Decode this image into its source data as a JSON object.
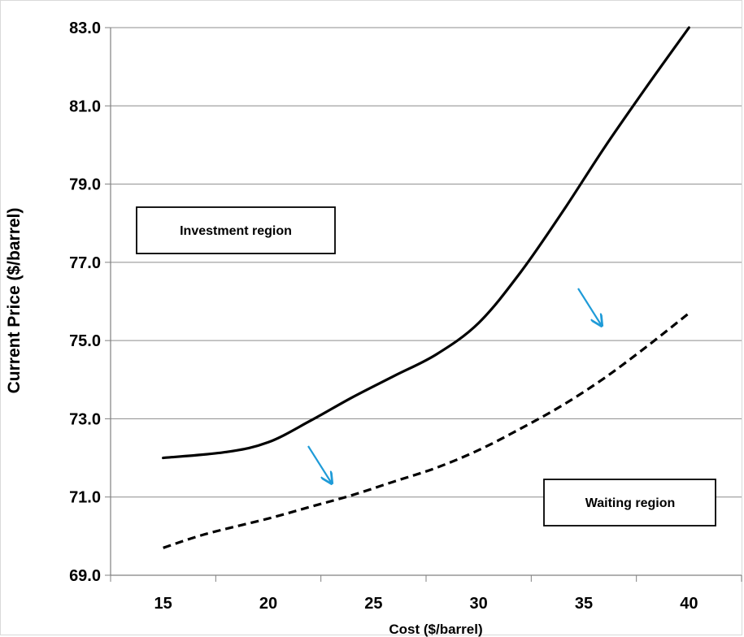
{
  "chart_data": {
    "type": "line",
    "title": "",
    "xlabel": "Cost ($/barrel)",
    "ylabel": "Current Price ($/barrel)",
    "xlim": [
      12.5,
      42.5
    ],
    "ylim": [
      69.0,
      83.0
    ],
    "x_ticks": [
      "15",
      "20",
      "25",
      "30",
      "35",
      "40"
    ],
    "y_ticks": [
      "69.0",
      "71.0",
      "73.0",
      "75.0",
      "77.0",
      "79.0",
      "81.0",
      "83.0"
    ],
    "grid": true,
    "series": [
      {
        "style": "solid",
        "color": "#000000",
        "x": [
          15,
          18,
          20,
          22,
          24,
          26,
          28,
          30,
          32,
          34,
          36,
          38,
          40
        ],
        "y": [
          72.0,
          72.15,
          72.4,
          72.95,
          73.55,
          74.1,
          74.65,
          75.45,
          76.75,
          78.3,
          79.95,
          81.5,
          83.0
        ]
      },
      {
        "style": "dashed",
        "color": "#000000",
        "x": [
          15,
          17,
          20,
          22,
          24,
          26,
          28,
          30,
          32,
          34,
          36,
          38,
          40
        ],
        "y": [
          69.7,
          70.05,
          70.45,
          70.75,
          71.05,
          71.4,
          71.75,
          72.2,
          72.75,
          73.35,
          74.05,
          74.85,
          75.7
        ]
      }
    ],
    "annotations": {
      "investment_region": "Investment region",
      "waiting_region": "Waiting region",
      "arrow_color": "#1f9bd8"
    }
  }
}
